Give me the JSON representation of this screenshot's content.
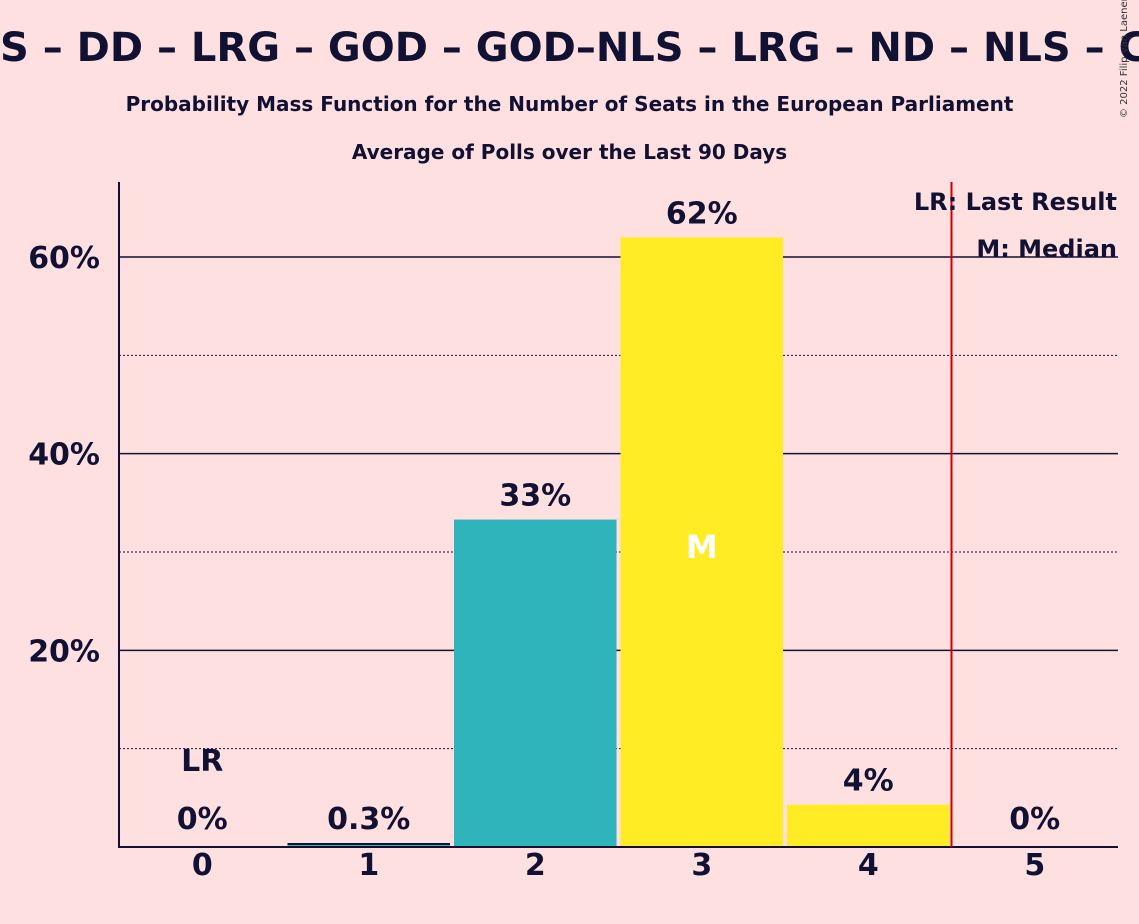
{
  "title": "S – DD – LRG – GOD – GOD–NLS – LRG – ND – NLS – C",
  "subtitle1": "Probability Mass Function for the Number of Seats in the European Parliament",
  "subtitle2": "Average of Polls over the Last 90 Days",
  "copyright": "© 2022 Filip van Laenen",
  "colors": {
    "background": "#FFE0E1",
    "teal": "#2FB4BC",
    "yellow": "#FFEC25",
    "last_result_line": "#CC0000",
    "text": "#111133"
  },
  "chart_data": {
    "type": "bar",
    "categories": [
      "0",
      "1",
      "2",
      "3",
      "4",
      "5"
    ],
    "values": [
      0,
      0.3,
      33.3,
      62,
      4.3,
      0
    ],
    "value_labels": [
      "0%",
      "0.3%",
      "33%",
      "62%",
      "4%",
      "0%"
    ],
    "bar_colors": [
      "#2FB4BC",
      "#2FB4BC",
      "#2FB4BC",
      "#FFEC25",
      "#FFEC25",
      "#FFEC25"
    ],
    "ylim": [
      0,
      68
    ],
    "yticks": [
      20,
      40,
      60
    ],
    "ytick_labels": [
      "20%",
      "40%",
      "60%"
    ],
    "minor_gridlines": [
      10,
      30,
      50
    ],
    "last_result": {
      "position": 4.5,
      "label": "LR",
      "label_category": "0"
    },
    "median": {
      "category": "3",
      "label": "M"
    },
    "legend": [
      "LR: Last Result",
      "M: Median"
    ],
    "legend_position": "top-right"
  }
}
